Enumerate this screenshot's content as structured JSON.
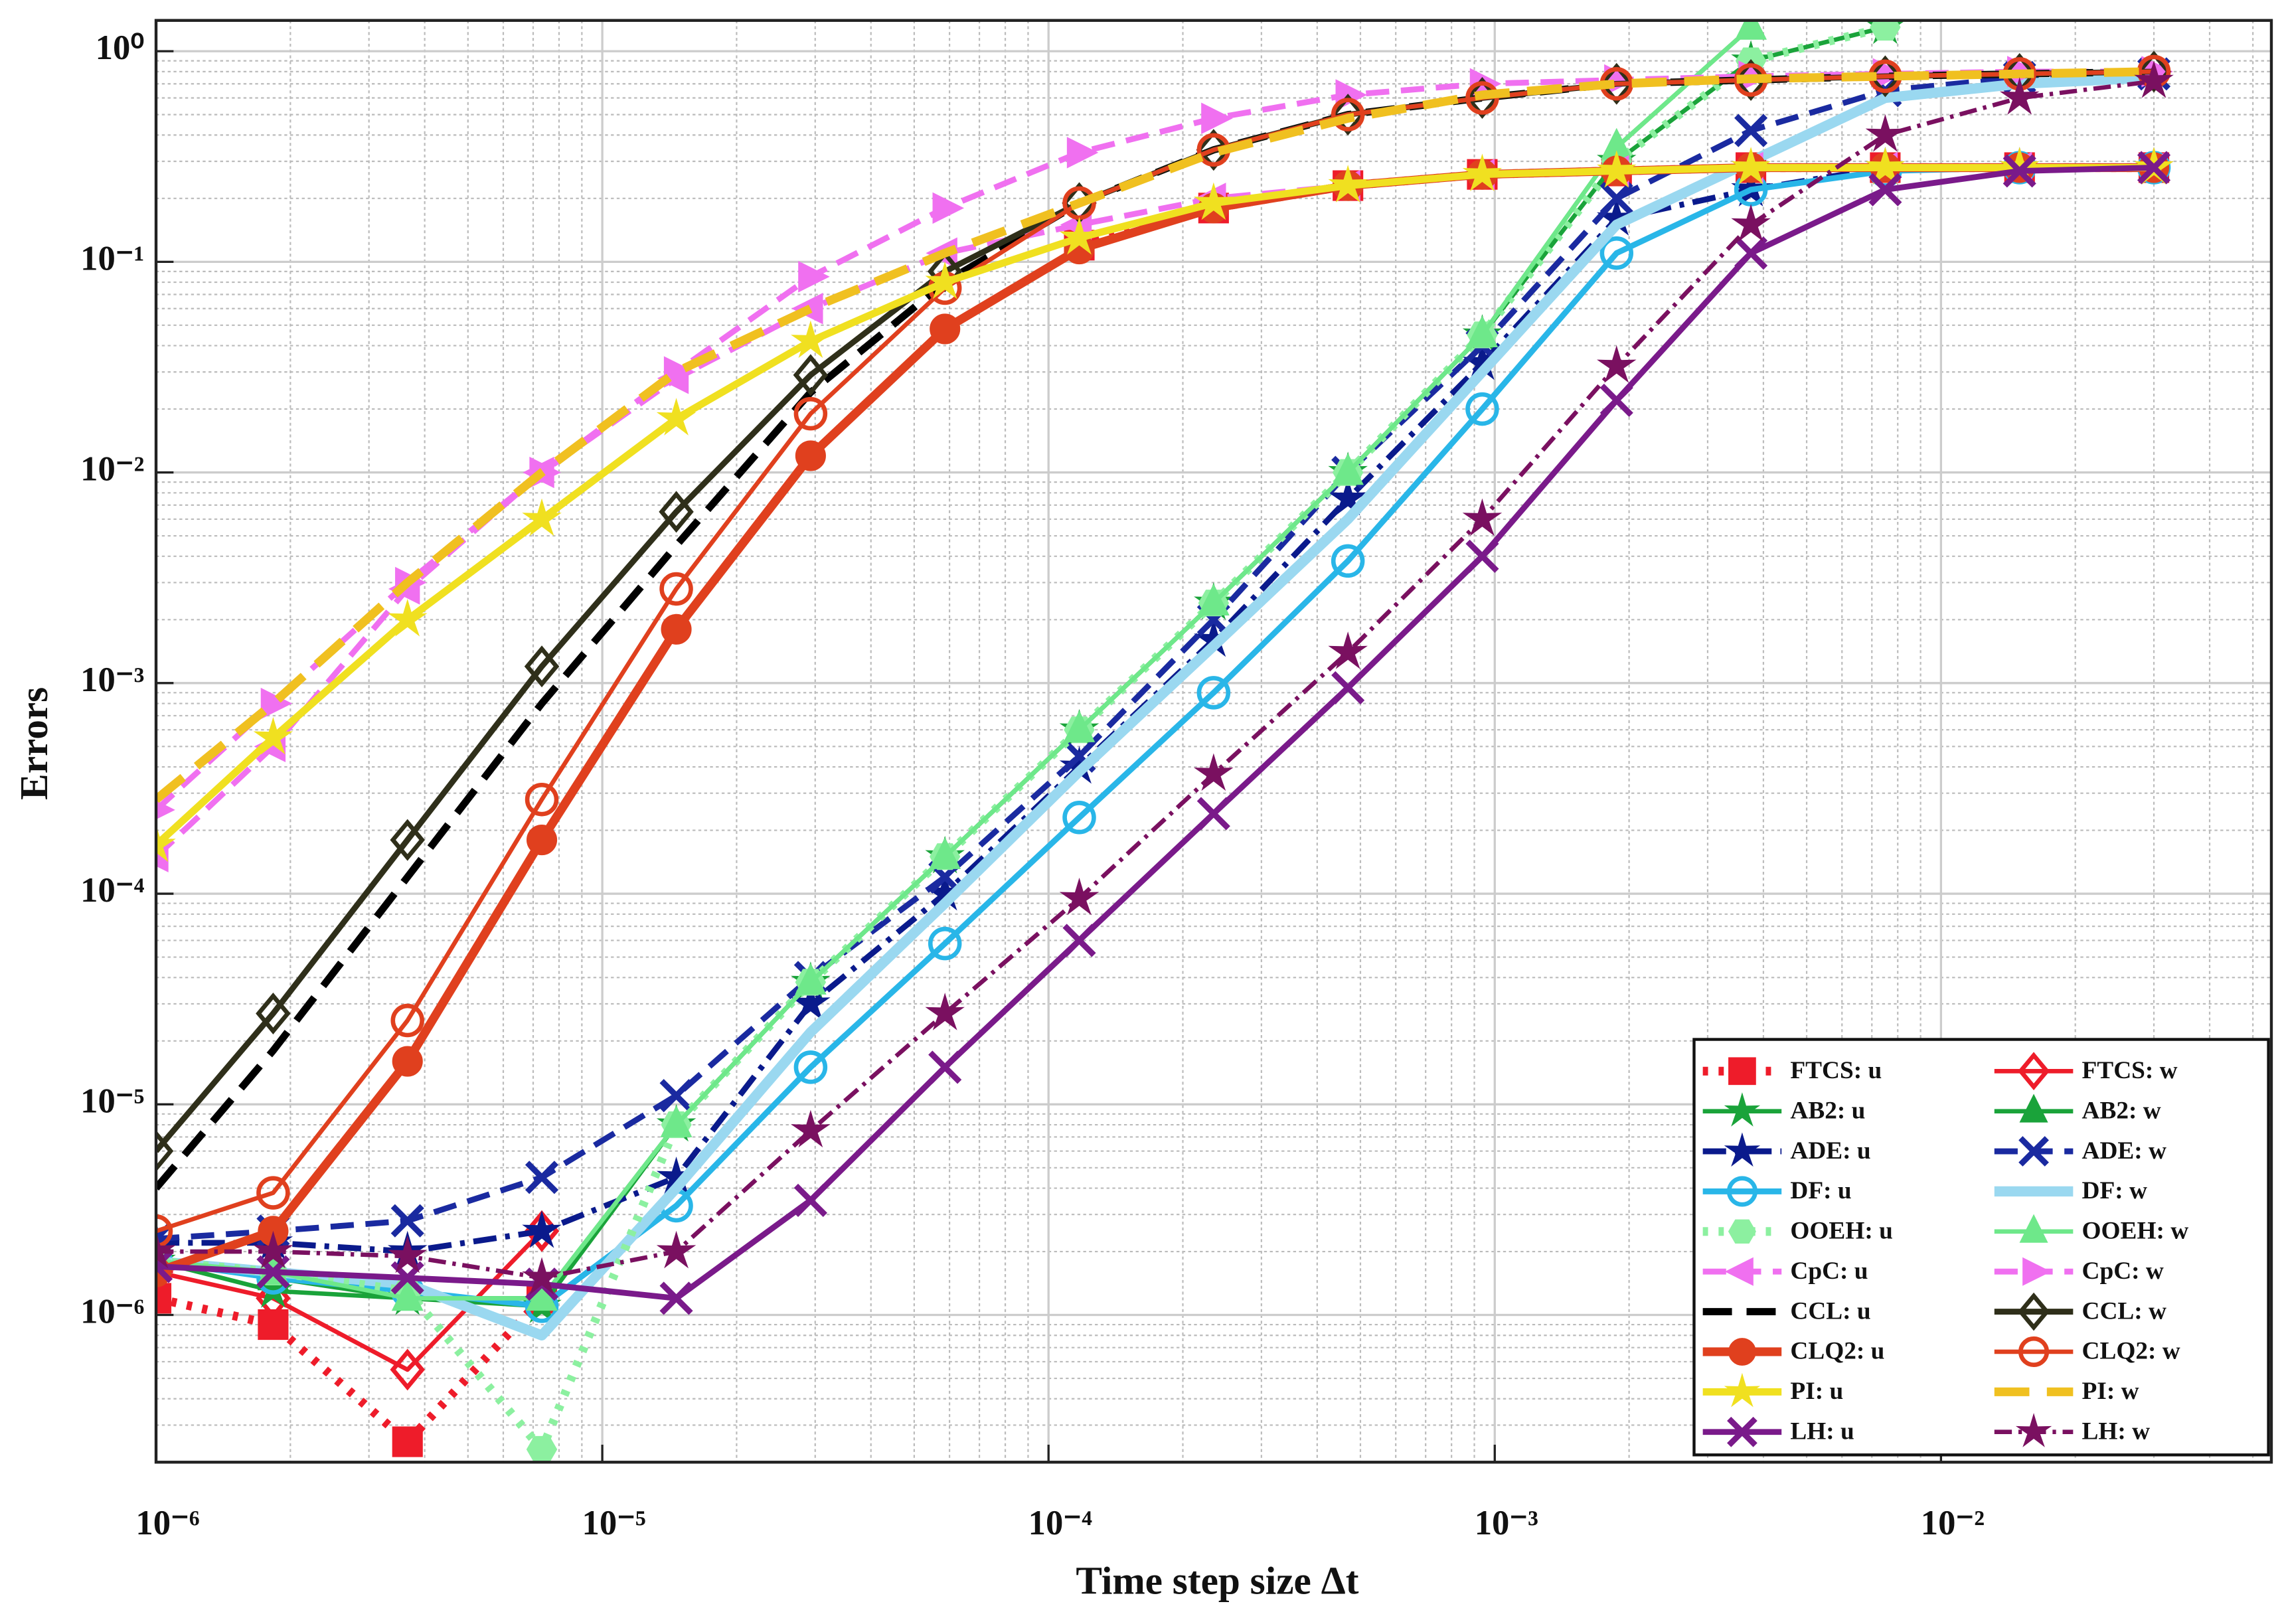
{
  "chart_data": {
    "type": "line",
    "xlabel": "Time step size Δt",
    "ylabel": "Errors",
    "xscale": "log",
    "yscale": "log",
    "xlim": [
      1e-06,
      0.055
    ],
    "ylim": [
      2e-07,
      1.4
    ],
    "xticks": [
      {
        "value": 1e-06,
        "label": "10⁻⁶"
      },
      {
        "value": 1e-05,
        "label": "10⁻⁵"
      },
      {
        "value": 0.0001,
        "label": "10⁻⁴"
      },
      {
        "value": 0.001,
        "label": "10⁻³"
      },
      {
        "value": 0.01,
        "label": "10⁻²"
      }
    ],
    "yticks": [
      {
        "value": 1e-06,
        "label": "10⁻⁶"
      },
      {
        "value": 1e-05,
        "label": "10⁻⁵"
      },
      {
        "value": 0.0001,
        "label": "10⁻⁴"
      },
      {
        "value": 0.001,
        "label": "10⁻³"
      },
      {
        "value": 0.01,
        "label": "10⁻²"
      },
      {
        "value": 0.1,
        "label": "10⁻¹"
      },
      {
        "value": 1,
        "label": "10⁰"
      }
    ],
    "grid": true,
    "minor_grid": true,
    "legend": "lower right",
    "x": [
      1e-06,
      1.83e-06,
      3.66e-06,
      7.32e-06,
      1.465e-05,
      2.93e-05,
      5.86e-05,
      0.0001172,
      0.0002344,
      0.0004688,
      0.0009375,
      0.001875,
      0.00375,
      0.0075,
      0.015,
      0.03
    ],
    "series": [
      {
        "name": "FTCS: u",
        "color": "#ee1c2a",
        "style": "dotted",
        "linewidth": 6,
        "marker": "square",
        "values": [
          1.2e-06,
          9e-07,
          2.5e-07,
          1.2e-06,
          null,
          null,
          null,
          0.12,
          0.18,
          0.23,
          0.26,
          0.27,
          0.28,
          0.28,
          0.28,
          0.28
        ]
      },
      {
        "name": "FTCS: w",
        "color": "#ee1c2a",
        "style": "solid",
        "linewidth": 3,
        "marker": "diamond-open",
        "values": [
          1.6e-06,
          1.2e-06,
          5.5e-07,
          2.5e-06,
          null,
          null,
          null,
          null,
          null,
          null,
          null,
          null,
          null,
          null,
          null,
          null
        ]
      },
      {
        "name": "AB2: u",
        "color": "#1aa33a",
        "style": "solid",
        "linewidth": 3,
        "marker": "star",
        "values": [
          1.8e-06,
          1.3e-06,
          1.2e-06,
          1.1e-06,
          8e-06,
          3.8e-05,
          0.00015,
          0.0006,
          0.0024,
          0.01,
          0.045,
          0.3,
          0.9,
          1.3,
          null,
          null
        ]
      },
      {
        "name": "AB2: w",
        "color": "#1aa33a",
        "style": "solid",
        "linewidth": 3,
        "marker": "triangle-up",
        "values": [
          1.8e-06,
          1.5e-06,
          1.2e-06,
          1.2e-06,
          8e-06,
          3.8e-05,
          0.00015,
          0.0006,
          0.0024,
          0.01,
          0.045,
          0.35,
          1.3,
          null,
          null,
          null
        ]
      },
      {
        "name": "ADE: u",
        "color": "#0a1a8c",
        "style": "dashdot",
        "linewidth": 4,
        "marker": "star",
        "values": [
          2.2e-06,
          2.2e-06,
          2e-06,
          2.5e-06,
          4.5e-06,
          3e-05,
          0.0001,
          0.0004,
          0.0016,
          0.0075,
          0.033,
          0.16,
          0.22,
          0.28,
          0.28,
          0.28
        ]
      },
      {
        "name": "ADE: w",
        "color": "#1a2aa0",
        "style": "dashed",
        "linewidth": 4,
        "marker": "x",
        "values": [
          2.3e-06,
          2.5e-06,
          2.8e-06,
          4.5e-06,
          1.1e-05,
          4e-05,
          0.00012,
          0.00045,
          0.002,
          0.01,
          0.04,
          0.2,
          0.42,
          0.65,
          0.75,
          0.78
        ]
      },
      {
        "name": "DF: u",
        "color": "#29b6e8",
        "style": "solid",
        "linewidth": 4,
        "marker": "circle-open",
        "values": [
          1.8e-06,
          1.5e-06,
          1.3e-06,
          1.1e-06,
          3.3e-06,
          1.5e-05,
          5.8e-05,
          0.00023,
          0.0009,
          0.0038,
          0.02,
          0.11,
          0.22,
          0.27,
          0.28,
          0.28
        ]
      },
      {
        "name": "DF: w",
        "color": "#9ad8f0",
        "style": "solid",
        "linewidth": 7,
        "marker": "none",
        "values": [
          1.8e-06,
          1.6e-06,
          1.4e-06,
          8e-07,
          4e-06,
          2.2e-05,
          9e-05,
          0.00038,
          0.0015,
          0.006,
          0.03,
          0.15,
          0.3,
          0.6,
          0.7,
          0.75
        ]
      },
      {
        "name": "OOEH: u",
        "color": "#8cf0a0",
        "style": "dotted",
        "linewidth": 6,
        "marker": "hexagon",
        "values": [
          1.8e-06,
          1.6e-06,
          1.3e-06,
          2.3e-07,
          8e-06,
          3.8e-05,
          0.00015,
          0.0006,
          0.0024,
          0.01,
          0.045,
          0.3,
          0.9,
          1.3,
          null,
          null
        ]
      },
      {
        "name": "OOEH: w",
        "color": "#6ee88a",
        "style": "solid",
        "linewidth": 3,
        "marker": "triangle-up",
        "values": [
          1.8e-06,
          1.6e-06,
          1.2e-06,
          1.2e-06,
          8e-06,
          3.8e-05,
          0.00015,
          0.0006,
          0.0024,
          0.01,
          0.045,
          0.35,
          1.3,
          null,
          null,
          null
        ]
      },
      {
        "name": "CpC: u",
        "color": "#f070f0",
        "style": "dashed",
        "linewidth": 4,
        "marker": "triangle-left",
        "values": [
          0.00015,
          0.0005,
          0.0028,
          0.01,
          0.028,
          0.06,
          0.11,
          0.15,
          0.2,
          0.23,
          0.26,
          0.27,
          0.28,
          0.28,
          0.28,
          0.28
        ]
      },
      {
        "name": "CpC: w",
        "color": "#f070f0",
        "style": "dashed",
        "linewidth": 4,
        "marker": "triangle-right",
        "values": [
          0.00025,
          0.0008,
          0.003,
          0.01,
          0.03,
          0.085,
          0.18,
          0.33,
          0.48,
          0.62,
          0.7,
          0.73,
          0.76,
          0.78,
          0.8,
          0.8
        ]
      },
      {
        "name": "CCL: u",
        "color": "#000000",
        "style": "dashed",
        "linewidth": 5,
        "marker": "none",
        "values": [
          4e-06,
          1.8e-05,
          0.00012,
          0.0008,
          0.0045,
          0.024,
          0.08,
          0.19,
          0.34,
          0.5,
          0.6,
          0.7,
          0.73,
          0.76,
          0.78,
          0.8
        ]
      },
      {
        "name": "CCL: w",
        "color": "#2f2f1a",
        "style": "solid",
        "linewidth": 4,
        "marker": "diamond-open",
        "values": [
          6e-06,
          2.7e-05,
          0.00018,
          0.0012,
          0.0065,
          0.029,
          0.09,
          0.19,
          0.34,
          0.5,
          0.6,
          0.7,
          0.73,
          0.76,
          0.78,
          0.8
        ]
      },
      {
        "name": "CLQ2: u",
        "color": "#e0401e",
        "style": "solid",
        "linewidth": 6,
        "marker": "circle",
        "values": [
          1.6e-06,
          2.5e-06,
          1.6e-05,
          0.00018,
          0.0018,
          0.012,
          0.048,
          0.115,
          0.18,
          0.23,
          0.26,
          0.27,
          0.28,
          0.28,
          0.28,
          0.28
        ]
      },
      {
        "name": "CLQ2: w",
        "color": "#e0401e",
        "style": "solid",
        "linewidth": 3,
        "marker": "circle-open",
        "values": [
          2.5e-06,
          3.8e-06,
          2.5e-05,
          0.00028,
          0.0028,
          0.019,
          0.075,
          0.19,
          0.34,
          0.5,
          0.6,
          0.7,
          0.73,
          0.76,
          0.78,
          0.8
        ]
      },
      {
        "name": "PI: u",
        "color": "#f0e020",
        "style": "solid",
        "linewidth": 5,
        "marker": "star",
        "values": [
          0.00017,
          0.00055,
          0.002,
          0.006,
          0.018,
          0.042,
          0.08,
          0.13,
          0.19,
          0.23,
          0.26,
          0.27,
          0.28,
          0.28,
          0.28,
          0.28
        ]
      },
      {
        "name": "PI: w",
        "color": "#f0c020",
        "style": "dashed",
        "linewidth": 6,
        "marker": "none",
        "values": [
          0.00028,
          0.0008,
          0.003,
          0.01,
          0.03,
          0.06,
          0.11,
          0.19,
          0.33,
          0.48,
          0.62,
          0.7,
          0.74,
          0.76,
          0.78,
          0.8
        ]
      },
      {
        "name": "LH: u",
        "color": "#7a1a8a",
        "style": "solid",
        "linewidth": 4,
        "marker": "x",
        "values": [
          1.7e-06,
          1.6e-06,
          1.5e-06,
          1.4e-06,
          1.2e-06,
          3.5e-06,
          1.5e-05,
          6e-05,
          0.00024,
          0.00095,
          0.004,
          0.022,
          0.11,
          0.22,
          0.27,
          0.28
        ]
      },
      {
        "name": "LH: w",
        "color": "#7a1060",
        "style": "dashdot",
        "linewidth": 3,
        "marker": "star",
        "values": [
          2e-06,
          2e-06,
          1.9e-06,
          1.5e-06,
          2e-06,
          7.5e-06,
          2.7e-05,
          9.5e-05,
          0.00037,
          0.0014,
          0.006,
          0.032,
          0.15,
          0.4,
          0.6,
          0.72
        ]
      }
    ]
  }
}
